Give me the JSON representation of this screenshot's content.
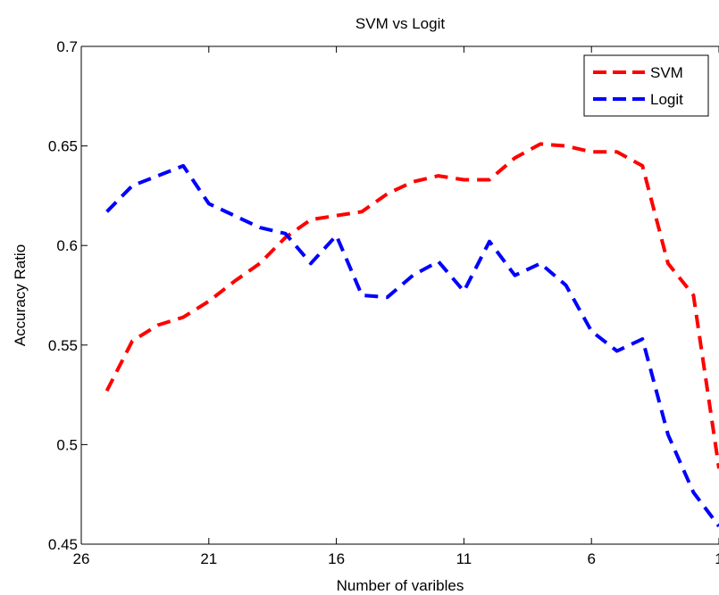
{
  "chart_data": {
    "type": "line",
    "title": "SVM vs Logit",
    "xlabel": "Number of varibles",
    "ylabel": "Accuracy Ratio",
    "xlim": [
      26,
      1
    ],
    "ylim": [
      0.45,
      0.7
    ],
    "x_reversed": true,
    "xticks": [
      "26",
      "21",
      "16",
      "11",
      "6",
      "1"
    ],
    "yticks": [
      "0.45",
      "0.5",
      "0.55",
      "0.6",
      "0.65",
      "0.7"
    ],
    "grid": false,
    "legend_position": "top-right",
    "x": [
      25,
      24,
      23,
      22,
      21,
      20,
      19,
      18,
      17,
      16,
      15,
      14,
      13,
      12,
      11,
      10,
      9,
      8,
      7,
      6,
      5,
      4,
      3,
      2,
      1
    ],
    "series": [
      {
        "name": "SVM",
        "color": "#ff0000",
        "line_style": "dashed",
        "values": [
          0.527,
          0.552,
          0.56,
          0.564,
          0.572,
          0.582,
          0.591,
          0.604,
          0.613,
          0.615,
          0.617,
          0.626,
          0.632,
          0.635,
          0.633,
          0.633,
          0.644,
          0.651,
          0.65,
          0.647,
          0.647,
          0.64,
          0.591,
          0.575,
          0.488
        ]
      },
      {
        "name": "Logit",
        "color": "#0000ff",
        "line_style": "dashed",
        "values": [
          0.617,
          0.63,
          0.635,
          0.64,
          0.621,
          0.615,
          0.609,
          0.606,
          0.591,
          0.605,
          0.575,
          0.574,
          0.585,
          0.592,
          0.577,
          0.602,
          0.585,
          0.591,
          0.58,
          0.557,
          0.547,
          0.553,
          0.505,
          0.476,
          0.459
        ]
      }
    ]
  }
}
